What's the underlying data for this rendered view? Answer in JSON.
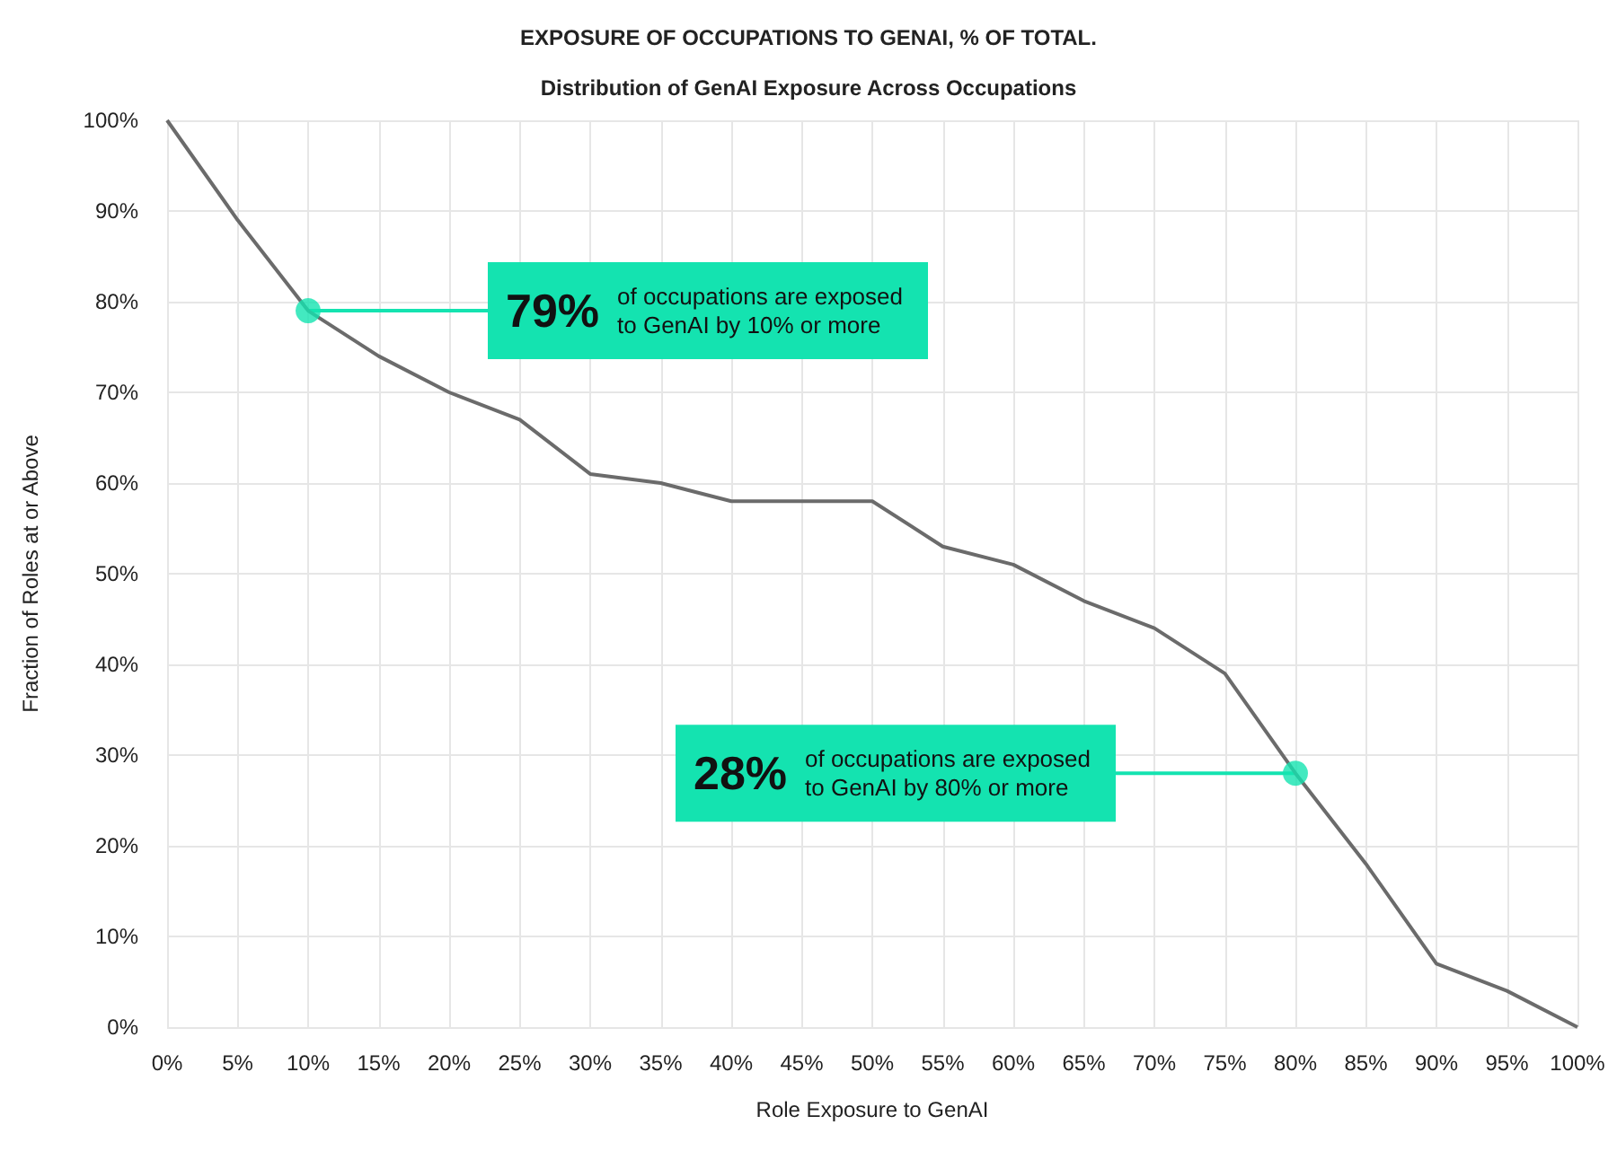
{
  "chart_data": {
    "type": "line",
    "title": "EXPOSURE OF OCCUPATIONS TO GENAI, % OF TOTAL.",
    "subtitle": "Distribution of GenAI Exposure Across Occupations",
    "xlabel": "Role Exposure to GenAI",
    "ylabel": "Fraction of Roles at or Above",
    "x": [
      0,
      5,
      10,
      15,
      20,
      25,
      30,
      35,
      40,
      45,
      50,
      55,
      60,
      65,
      70,
      75,
      80,
      85,
      90,
      95,
      100
    ],
    "series": [
      {
        "color": "#6b6b6b",
        "values": [
          100,
          89,
          79,
          74,
          70,
          67,
          61,
          60,
          58,
          58,
          58,
          53,
          51,
          47,
          44,
          39,
          28,
          18,
          7,
          4,
          0
        ]
      }
    ],
    "xlim": [
      0,
      100
    ],
    "xticks": [
      {
        "value": 0,
        "label": "0%"
      },
      {
        "value": 5,
        "label": "5%"
      },
      {
        "value": 10,
        "label": "10%"
      },
      {
        "value": 15,
        "label": "15%"
      },
      {
        "value": 20,
        "label": "20%"
      },
      {
        "value": 25,
        "label": "25%"
      },
      {
        "value": 30,
        "label": "30%"
      },
      {
        "value": 35,
        "label": "35%"
      },
      {
        "value": 40,
        "label": "40%"
      },
      {
        "value": 45,
        "label": "45%"
      },
      {
        "value": 50,
        "label": "50%"
      },
      {
        "value": 55,
        "label": "55%"
      },
      {
        "value": 60,
        "label": "60%"
      },
      {
        "value": 65,
        "label": "65%"
      },
      {
        "value": 70,
        "label": "70%"
      },
      {
        "value": 75,
        "label": "75%"
      },
      {
        "value": 80,
        "label": "80%"
      },
      {
        "value": 85,
        "label": "85%"
      },
      {
        "value": 90,
        "label": "90%"
      },
      {
        "value": 95,
        "label": "95%"
      },
      {
        "value": 100,
        "label": "100%"
      }
    ],
    "ylim": [
      0,
      100
    ],
    "yticks": [
      {
        "value": 0,
        "label": "0%"
      },
      {
        "value": 10,
        "label": "10%"
      },
      {
        "value": 20,
        "label": "20%"
      },
      {
        "value": 30,
        "label": "30%"
      },
      {
        "value": 40,
        "label": "40%"
      },
      {
        "value": 50,
        "label": "50%"
      },
      {
        "value": 60,
        "label": "60%"
      },
      {
        "value": 70,
        "label": "70%"
      },
      {
        "value": 80,
        "label": "80%"
      },
      {
        "value": 90,
        "label": "90%"
      },
      {
        "value": 100,
        "label": "100%"
      }
    ],
    "annotations": [
      {
        "text": "79% of occupations are exposed to GenAI by 10% or more",
        "x": 10,
        "y": 79
      },
      {
        "text": "28% of occupations are exposed to GenAI by 80% or more",
        "x": 80,
        "y": 28
      }
    ],
    "grid": true,
    "marker": "none",
    "line_style": "solid"
  }
}
